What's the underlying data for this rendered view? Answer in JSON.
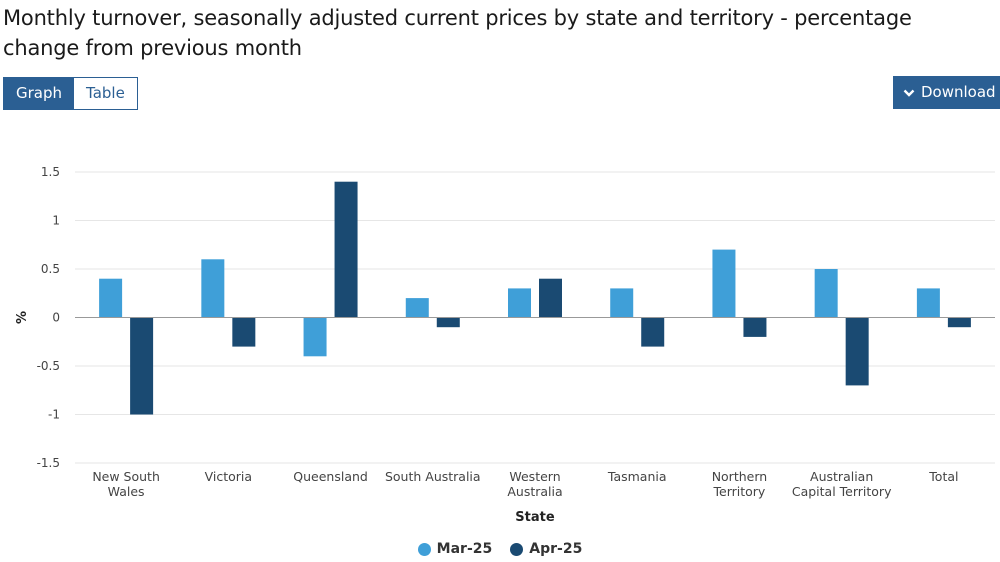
{
  "header": {
    "title": "Monthly turnover, seasonally adjusted current prices by state and territory - percentage change from previous month"
  },
  "toolbar": {
    "graph_label": "Graph",
    "table_label": "Table",
    "download_label": "Download",
    "download_icon": "chevron-down-icon"
  },
  "colors": {
    "accent": "#2b5f93",
    "series_mar": "#3f9fd8",
    "series_apr": "#1a4a72",
    "grid": "#e6e6e6",
    "zero_line": "#999999"
  },
  "chart_data": {
    "type": "bar",
    "title": "Monthly turnover, seasonally adjusted current prices by state and territory - percentage change from previous month",
    "xlabel": "State",
    "ylabel": "%",
    "ylim": [
      -1.5,
      1.5
    ],
    "yticks": [
      1.5,
      1,
      0.5,
      0,
      -0.5,
      -1,
      -1.5
    ],
    "ytick_labels": [
      "1.5",
      "1",
      "0.5",
      "0",
      "-0.5",
      "-1",
      "-1.5"
    ],
    "grid": true,
    "legend_position": "bottom-center",
    "categories": [
      [
        "New South",
        "Wales"
      ],
      [
        "Victoria"
      ],
      [
        "Queensland"
      ],
      [
        "South Australia"
      ],
      [
        "Western",
        "Australia"
      ],
      [
        "Tasmania"
      ],
      [
        "Northern",
        "Territory"
      ],
      [
        "Australian",
        "Capital Territory"
      ],
      [
        "Total"
      ]
    ],
    "series": [
      {
        "name": "Mar-25",
        "values": [
          0.4,
          0.6,
          -0.4,
          0.2,
          0.3,
          0.3,
          0.7,
          0.5,
          0.3
        ]
      },
      {
        "name": "Apr-25",
        "values": [
          -1.0,
          -0.3,
          1.4,
          -0.1,
          0.4,
          -0.3,
          -0.2,
          -0.7,
          -0.1
        ]
      }
    ]
  }
}
